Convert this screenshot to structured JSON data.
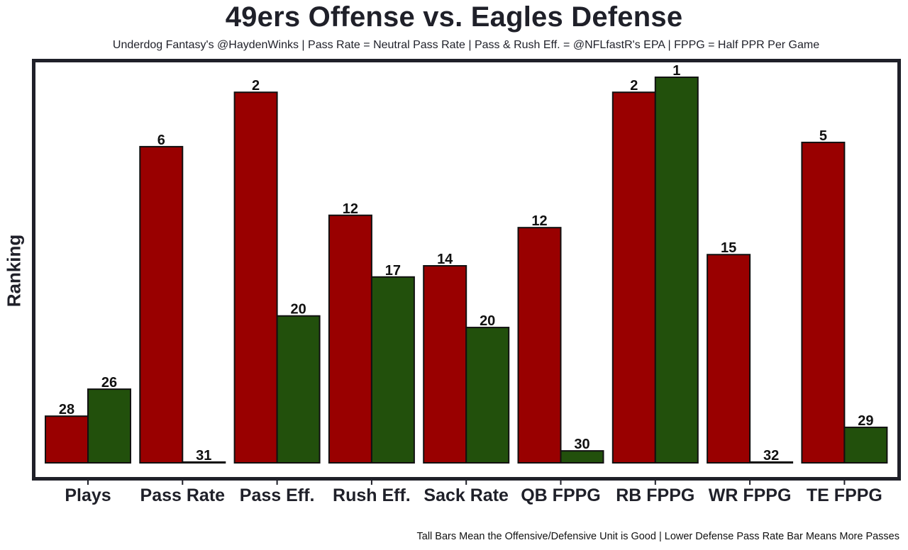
{
  "chart_data": {
    "type": "bar",
    "title": "49ers Offense vs. Eagles Defense",
    "subtitle": "Underdog Fantasy's @HaydenWinks | Pass Rate = Neutral Pass Rate | Pass & Rush Eff. = @NFLfastR's EPA | FPPG = Half PPR Per Game",
    "footer": "Tall Bars Mean the Offensive/Defensive Unit is Good | Lower Defense Pass Rate Bar Means More Passes",
    "xlabel": "",
    "ylabel": "Ranking",
    "ylim": [
      0,
      100
    ],
    "grid": false,
    "legend": "none",
    "categories": [
      "Plays",
      "Pass Rate",
      "Pass Eff.",
      "Rush Eff.",
      "Sack Rate",
      "QB FPPG",
      "RB FPPG",
      "WR FPPG",
      "TE FPPG"
    ],
    "series": [
      {
        "name": "49ers Offense",
        "color": "#990000",
        "rank_labels": [
          28,
          6,
          2,
          12,
          14,
          12,
          2,
          15,
          5
        ],
        "values": [
          12.1,
          82.0,
          96.1,
          64.2,
          51.1,
          61.0,
          96.1,
          54.0,
          83.1
        ]
      },
      {
        "name": "Eagles Defense",
        "color": "#22500c",
        "rank_labels": [
          26,
          31,
          20,
          17,
          20,
          30,
          1,
          32,
          29
        ],
        "values": [
          19.1,
          0.2,
          38.1,
          48.2,
          35.1,
          3.1,
          100,
          0.2,
          9.2
        ]
      }
    ]
  }
}
